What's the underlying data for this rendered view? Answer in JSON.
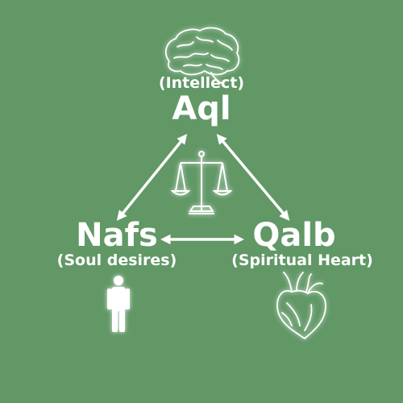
{
  "nodes": {
    "aql": {
      "label": "Aql",
      "sublabel": "(Intellect)",
      "icon": "brain-icon"
    },
    "nafs": {
      "label": "Nafs",
      "sublabel": "(Soul desires)",
      "icon": "person-icon"
    },
    "qalb": {
      "label": "Qalb",
      "sublabel": "(Spiritual Heart)",
      "icon": "anatomical-heart-icon"
    }
  },
  "center_icon": "balance-scale-icon",
  "edges": [
    {
      "from": "aql",
      "to": "nafs",
      "style": "double-headed-arrow"
    },
    {
      "from": "aql",
      "to": "qalb",
      "style": "double-headed-arrow"
    },
    {
      "from": "nafs",
      "to": "qalb",
      "style": "double-headed-arrow"
    }
  ],
  "colors": {
    "background": "#619866",
    "foreground": "#ffffff"
  }
}
